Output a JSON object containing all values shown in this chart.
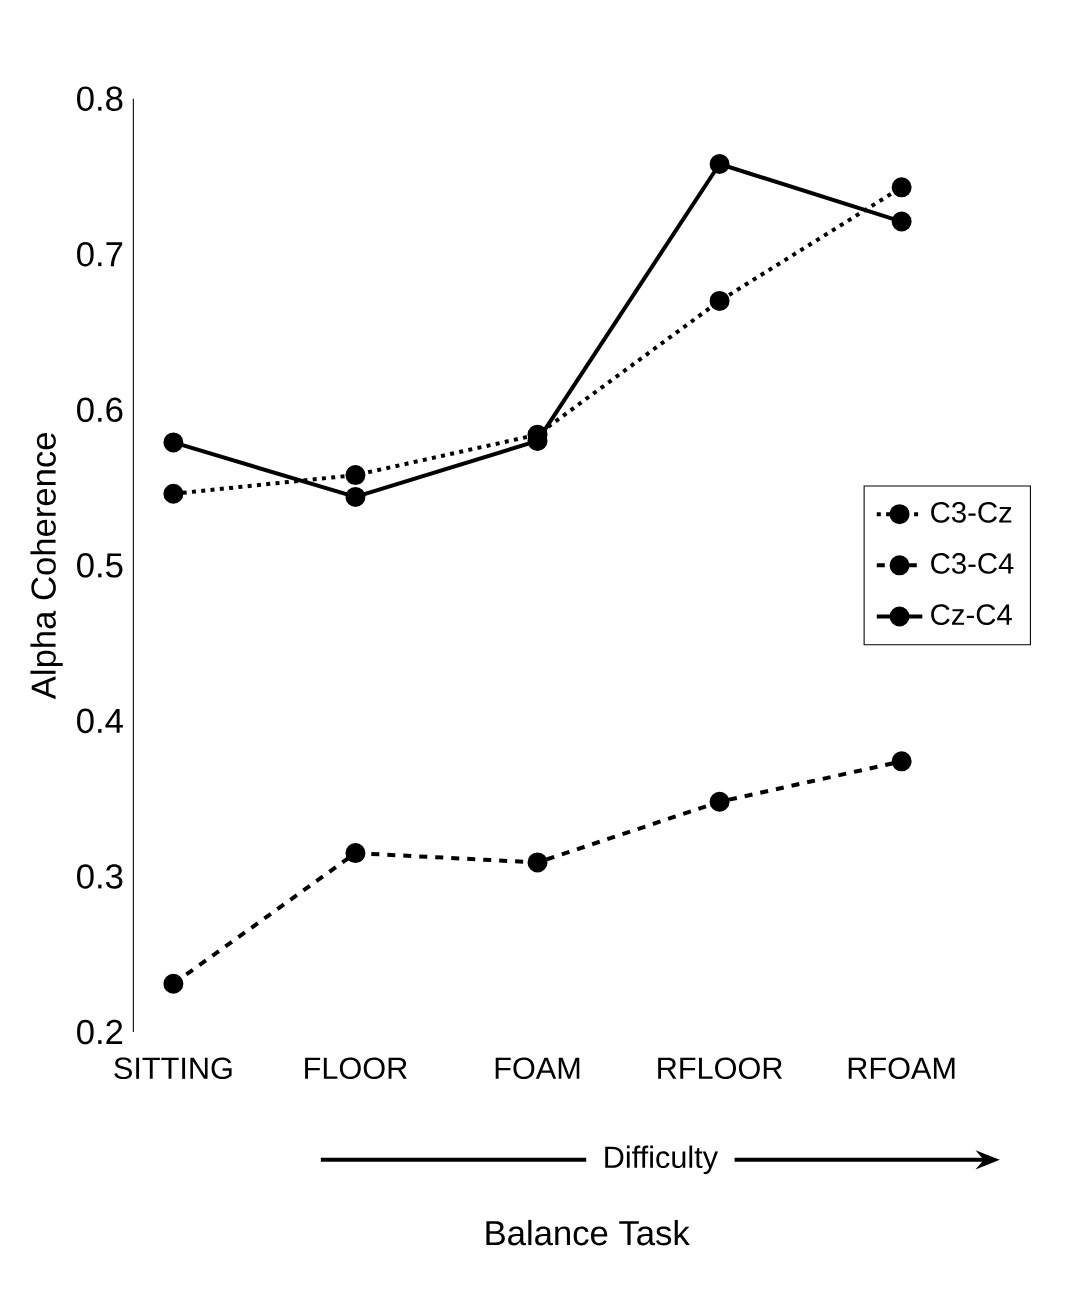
{
  "chart_data": {
    "type": "line",
    "xlabel": "Balance Task",
    "ylabel": "Alpha Coherence",
    "categories": [
      "SITTING",
      "FLOOR",
      "FOAM",
      "RFLOOR",
      "RFOAM"
    ],
    "series": [
      {
        "name": "C3-Cz",
        "color": "#000000",
        "line_style": "dotted",
        "values": [
          0.546,
          0.558,
          0.584,
          0.67,
          0.743
        ]
      },
      {
        "name": "C3-C4",
        "color": "#000000",
        "line_style": "dashed",
        "values": [
          0.231,
          0.315,
          0.309,
          0.348,
          0.374
        ]
      },
      {
        "name": "Cz-C4",
        "color": "#000000",
        "line_style": "solid",
        "values": [
          0.579,
          0.544,
          0.58,
          0.758,
          0.721
        ]
      }
    ],
    "ylim": [
      0.2,
      0.8
    ],
    "yticks": [
      0.2,
      0.3,
      0.4,
      0.5,
      0.6,
      0.7,
      0.8
    ],
    "marker": "circle",
    "legend": "right",
    "grid": false,
    "annotations": [
      "Difficulty"
    ]
  }
}
